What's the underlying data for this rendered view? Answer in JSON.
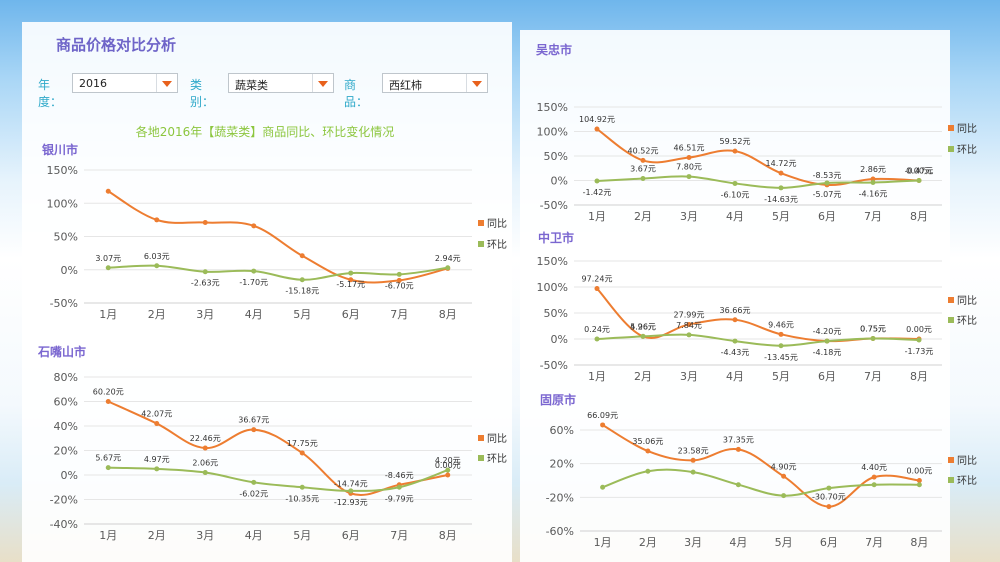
{
  "main_title": "商品价格对比分析",
  "filters": {
    "year_label": "年度：",
    "year_value": "2016",
    "category_label": "类别：",
    "category_value": "蔬菜类",
    "product_label": "商品：",
    "product_value": "西红柿"
  },
  "chart_heading": "各地2016年【蔬菜类】商品同比、环比变化情况",
  "colors": {
    "yoy": "#ed7d31",
    "mom": "#9bbb59",
    "axis_text": "#595959",
    "grid": "#e6e6e6"
  },
  "chart_data": [
    {
      "type": "line",
      "title": "银川市",
      "categories": [
        "1月",
        "2月",
        "3月",
        "4月",
        "5月",
        "6月",
        "7月",
        "8月"
      ],
      "yticks": [
        "150%",
        "100%",
        "50%",
        "0%",
        "-50%"
      ],
      "ylim": [
        -50,
        150
      ],
      "series": [
        {
          "name": "同比",
          "values": [
            118,
            75,
            71,
            66,
            21,
            -15,
            -16,
            2
          ],
          "labels": [
            "",
            "",
            "",
            "",
            "",
            "",
            "",
            ""
          ]
        },
        {
          "name": "环比",
          "values": [
            3,
            6,
            -3,
            -2,
            -15,
            -5,
            -7,
            3
          ],
          "labels": [
            "3.07元",
            "6.03元",
            "-2.63元",
            "-1.70元",
            "-15.18元",
            "-5.17元",
            "-6.70元",
            "2.94元"
          ]
        }
      ]
    },
    {
      "type": "line",
      "title": "石嘴山市",
      "categories": [
        "1月",
        "2月",
        "3月",
        "4月",
        "5月",
        "6月",
        "7月",
        "8月"
      ],
      "yticks": [
        "80%",
        "60%",
        "40%",
        "20%",
        "0%",
        "-20%",
        "-40%"
      ],
      "ylim": [
        -40,
        80
      ],
      "series": [
        {
          "name": "同比",
          "values": [
            60,
            42,
            22,
            37,
            18,
            -15,
            -8,
            0
          ],
          "labels": [
            "60.20元",
            "42.07元",
            "22.46元",
            "36.67元",
            "17.75元",
            "-14.74元",
            "-8.46元",
            "0.00元"
          ]
        },
        {
          "name": "环比",
          "values": [
            6,
            5,
            2,
            -6,
            -10,
            -13,
            -10,
            4
          ],
          "labels": [
            "5.67元",
            "4.97元",
            "2.06元",
            "-6.02元",
            "-10.35元",
            "-12.93元",
            "-9.79元",
            "4.20元"
          ]
        }
      ]
    },
    {
      "type": "line",
      "title": "吴忠市",
      "categories": [
        "1月",
        "2月",
        "3月",
        "4月",
        "5月",
        "6月",
        "7月",
        "8月"
      ],
      "yticks": [
        "150%",
        "100%",
        "50%",
        "0%",
        "-50%"
      ],
      "ylim": [
        -50,
        150
      ],
      "series": [
        {
          "name": "同比",
          "values": [
            105,
            41,
            47,
            60,
            15,
            -9,
            3,
            0
          ],
          "labels": [
            "104.92元",
            "40.52元",
            "46.51元",
            "59.52元",
            "14.72元",
            "-8.53元",
            "2.86元",
            "0.00元"
          ]
        },
        {
          "name": "环比",
          "values": [
            -1,
            4,
            8,
            -6,
            -15,
            -5,
            -4,
            0
          ],
          "labels": [
            "-1.42元",
            "3.67元",
            "7.80元",
            "-6.10元",
            "-14.63元",
            "-5.07元",
            "-4.16元",
            "-0.47元"
          ]
        }
      ]
    },
    {
      "type": "line",
      "title": "中卫市",
      "categories": [
        "1月",
        "2月",
        "3月",
        "4月",
        "5月",
        "6月",
        "7月",
        "8月"
      ],
      "yticks": [
        "150%",
        "100%",
        "50%",
        "0%",
        "-50%"
      ],
      "ylim": [
        -50,
        150
      ],
      "series": [
        {
          "name": "同比",
          "values": [
            97,
            5,
            28,
            37,
            9,
            -4,
            1,
            0
          ],
          "labels": [
            "97.24元",
            "5.26元",
            "27.99元",
            "36.66元",
            "9.46元",
            "-4.20元",
            "0.75元",
            "0.00元"
          ]
        },
        {
          "name": "环比",
          "values": [
            0,
            5,
            8,
            -4,
            -13,
            -4,
            1,
            -2
          ],
          "labels": [
            "0.24元",
            "4.96元",
            "7.84元",
            "-4.43元",
            "-13.45元",
            "-4.18元",
            "0.75元",
            "-1.73元"
          ]
        }
      ]
    },
    {
      "type": "line",
      "title": "固原市",
      "categories": [
        "1月",
        "2月",
        "3月",
        "4月",
        "5月",
        "6月",
        "7月",
        "8月"
      ],
      "yticks": [
        "60%",
        "20%",
        "-20%",
        "-60%"
      ],
      "ylim": [
        -60,
        60
      ],
      "series": [
        {
          "name": "同比",
          "values": [
            66,
            35,
            24,
            37,
            5,
            -31,
            4,
            0
          ],
          "labels": [
            "66.09元",
            "35.06元",
            "23.58元",
            "37.35元",
            "4.90元",
            "-30.70元",
            "4.40元",
            "0.00元"
          ]
        },
        {
          "name": "环比",
          "values": [
            -8,
            11,
            10,
            -5,
            -18,
            -9,
            -5,
            -5
          ],
          "labels": [
            "",
            "",
            "",
            "",
            "",
            "",
            "",
            ""
          ]
        }
      ]
    }
  ]
}
